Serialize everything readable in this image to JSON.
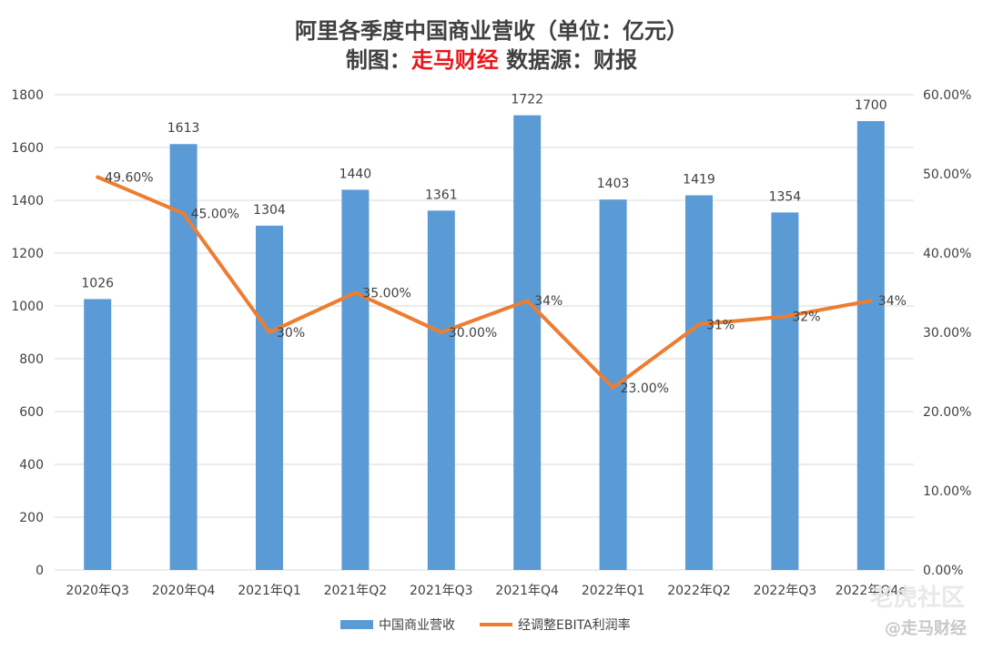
{
  "title": {
    "line1": "阿里各季度中国商业营收（单位：亿元）",
    "line2_prefix": "制图：",
    "line2_red": "走马财经",
    "line2_suffix": " 数据源：财报"
  },
  "watermarks": {
    "logo": "老虎社区",
    "handle": "@走马财经"
  },
  "colors": {
    "bar": "#5b9bd5",
    "line": "#ed7d31",
    "grid": "#d9d9d9",
    "text": "#404040",
    "title_red": "#e8161b"
  },
  "chart_data": {
    "type": "bar",
    "categories": [
      "2020年Q3",
      "2020年Q4",
      "2021年Q1",
      "2021年Q2",
      "2021年Q3",
      "2021年Q4",
      "2022年Q1",
      "2022年Q2",
      "2022年Q3",
      "2022年Q4e"
    ],
    "series": [
      {
        "name": "中国商业营收",
        "type": "bar",
        "axis": "left",
        "values": [
          1026,
          1613,
          1304,
          1440,
          1361,
          1722,
          1403,
          1419,
          1354,
          1700
        ],
        "labels": [
          "1026",
          "1613",
          "1304",
          "1440",
          "1361",
          "1722",
          "1403",
          "1419",
          "1354",
          "1700"
        ]
      },
      {
        "name": "经调整EBITA利润率",
        "type": "line",
        "axis": "right",
        "values": [
          49.6,
          45.0,
          30.0,
          35.0,
          30.0,
          34.0,
          23.0,
          31.0,
          32.0,
          34.0
        ],
        "labels": [
          "49.60%",
          "45.00%",
          "30%",
          "35.00%",
          "30.00%",
          "34%",
          "23.00%",
          "31%",
          "32%",
          "34%"
        ]
      }
    ],
    "y_left": {
      "min": 0,
      "max": 1800,
      "ticks": [
        "0",
        "200",
        "400",
        "600",
        "800",
        "1000",
        "1200",
        "1400",
        "1600",
        "1800"
      ]
    },
    "y_right": {
      "min": 0,
      "max": 60,
      "ticks": [
        "0.00%",
        "10.00%",
        "20.00%",
        "30.00%",
        "40.00%",
        "50.00%",
        "60.00%"
      ]
    },
    "grid": true,
    "legend": "bottom"
  }
}
